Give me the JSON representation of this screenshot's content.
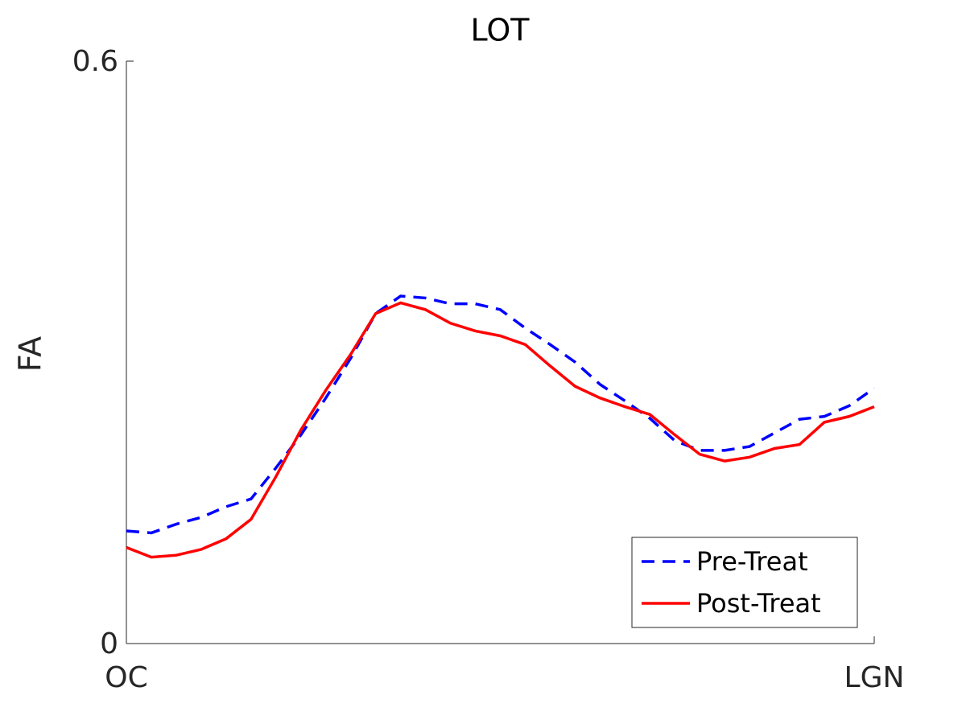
{
  "chart_data": {
    "type": "line",
    "title": "LOT",
    "ylabel": "FA",
    "x": [
      0,
      1,
      2,
      3,
      4,
      5,
      6,
      7,
      8,
      9,
      10,
      11,
      12,
      13,
      14,
      15,
      16,
      17,
      18,
      19,
      20,
      21,
      22,
      23,
      24,
      25,
      26,
      27,
      28,
      29,
      30
    ],
    "xlim": [
      0,
      30
    ],
    "xticks": [
      {
        "value": 0,
        "label": "OC"
      },
      {
        "value": 30,
        "label": "LGN"
      }
    ],
    "ylim": [
      0,
      0.6
    ],
    "yticks": [
      {
        "value": 0,
        "label": "0"
      },
      {
        "value": 0.6,
        "label": "0.6"
      }
    ],
    "grid": false,
    "legend": "lower right",
    "series": [
      {
        "name": "Pre-Treat",
        "color": "#0000ff",
        "style": "dashed",
        "values": [
          0.116,
          0.114,
          0.123,
          0.13,
          0.141,
          0.149,
          0.181,
          0.215,
          0.253,
          0.294,
          0.34,
          0.358,
          0.356,
          0.35,
          0.35,
          0.344,
          0.325,
          0.308,
          0.29,
          0.267,
          0.25,
          0.232,
          0.209,
          0.199,
          0.199,
          0.203,
          0.217,
          0.231,
          0.234,
          0.245,
          0.263
        ]
      },
      {
        "name": "Post-Treat",
        "color": "#ff0000",
        "style": "solid",
        "values": [
          0.099,
          0.089,
          0.091,
          0.097,
          0.108,
          0.128,
          0.172,
          0.22,
          0.261,
          0.298,
          0.34,
          0.351,
          0.344,
          0.33,
          0.322,
          0.317,
          0.308,
          0.286,
          0.265,
          0.253,
          0.244,
          0.236,
          0.215,
          0.195,
          0.188,
          0.192,
          0.201,
          0.205,
          0.228,
          0.234,
          0.244
        ]
      }
    ]
  }
}
